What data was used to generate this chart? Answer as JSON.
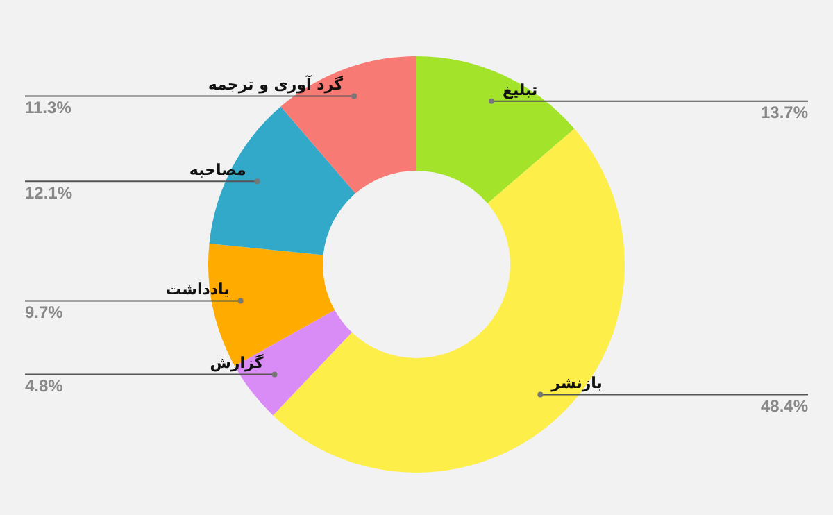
{
  "chart_data": {
    "type": "donut",
    "categories": [
      "تبلیغ",
      "بازنشر",
      "گزارش",
      "یادداشت",
      "مصاحبه",
      "گرد آوری و ترجمه"
    ],
    "values": [
      13.7,
      48.4,
      4.8,
      9.7,
      12.1,
      11.3
    ],
    "value_labels": [
      "13.7%",
      "48.4%",
      "4.8%",
      "9.7%",
      "12.1%",
      "11.3%"
    ],
    "colors": [
      "#a3e32a",
      "#fdee4a",
      "#d98cf5",
      "#ffab00",
      "#33a9c9",
      "#f77a74"
    ],
    "legend": false
  }
}
